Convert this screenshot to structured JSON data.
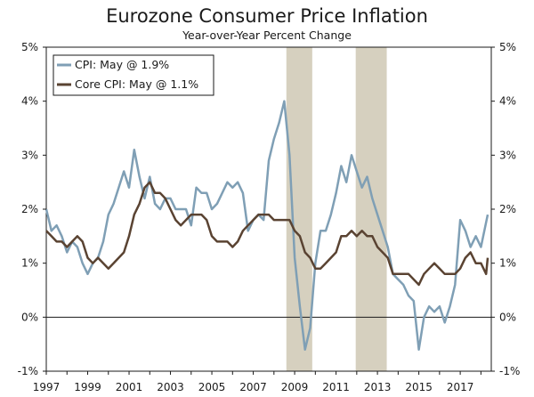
{
  "chart_data": {
    "type": "line",
    "title": "Eurozone Consumer Price Inflation",
    "subtitle": "Year-over-Year Percent Change",
    "xlabel": "",
    "ylabel": "",
    "xlim": [
      1997,
      2018.5
    ],
    "ylim": [
      -1,
      5
    ],
    "y_ticks": [
      -1,
      0,
      1,
      2,
      3,
      4,
      5
    ],
    "y_tick_labels": [
      "-1%",
      "0%",
      "1%",
      "2%",
      "3%",
      "4%",
      "5%"
    ],
    "x_ticks": [
      1997,
      1999,
      2001,
      2003,
      2005,
      2007,
      2009,
      2011,
      2013,
      2015,
      2017
    ],
    "x_tick_labels": [
      "1997",
      "1999",
      "2001",
      "2003",
      "2005",
      "2007",
      "2009",
      "2011",
      "2013",
      "2015",
      "2017"
    ],
    "legend_position": "top-left",
    "recessions": [
      {
        "start": 2008.6,
        "end": 2009.85
      },
      {
        "start": 2011.95,
        "end": 2013.45
      }
    ],
    "series": [
      {
        "name": "CPI: May @ 1.9%",
        "color": "#7f9fb5",
        "points": [
          [
            1997.0,
            2.0
          ],
          [
            1997.25,
            1.6
          ],
          [
            1997.5,
            1.7
          ],
          [
            1997.75,
            1.5
          ],
          [
            1998.0,
            1.2
          ],
          [
            1998.25,
            1.4
          ],
          [
            1998.5,
            1.3
          ],
          [
            1998.75,
            1.0
          ],
          [
            1999.0,
            0.8
          ],
          [
            1999.25,
            1.0
          ],
          [
            1999.5,
            1.1
          ],
          [
            1999.75,
            1.4
          ],
          [
            2000.0,
            1.9
          ],
          [
            2000.25,
            2.1
          ],
          [
            2000.5,
            2.4
          ],
          [
            2000.75,
            2.7
          ],
          [
            2001.0,
            2.4
          ],
          [
            2001.25,
            3.1
          ],
          [
            2001.5,
            2.6
          ],
          [
            2001.75,
            2.2
          ],
          [
            2002.0,
            2.6
          ],
          [
            2002.25,
            2.1
          ],
          [
            2002.5,
            2.0
          ],
          [
            2002.75,
            2.2
          ],
          [
            2003.0,
            2.2
          ],
          [
            2003.25,
            2.0
          ],
          [
            2003.5,
            2.0
          ],
          [
            2003.75,
            2.0
          ],
          [
            2004.0,
            1.7
          ],
          [
            2004.25,
            2.4
          ],
          [
            2004.5,
            2.3
          ],
          [
            2004.75,
            2.3
          ],
          [
            2005.0,
            2.0
          ],
          [
            2005.25,
            2.1
          ],
          [
            2005.5,
            2.3
          ],
          [
            2005.75,
            2.5
          ],
          [
            2006.0,
            2.4
          ],
          [
            2006.25,
            2.5
          ],
          [
            2006.5,
            2.3
          ],
          [
            2006.75,
            1.6
          ],
          [
            2007.0,
            1.8
          ],
          [
            2007.25,
            1.9
          ],
          [
            2007.5,
            1.8
          ],
          [
            2007.75,
            2.9
          ],
          [
            2008.0,
            3.3
          ],
          [
            2008.25,
            3.6
          ],
          [
            2008.5,
            4.0
          ],
          [
            2008.75,
            3.0
          ],
          [
            2009.0,
            1.1
          ],
          [
            2009.25,
            0.2
          ],
          [
            2009.5,
            -0.6
          ],
          [
            2009.75,
            -0.2
          ],
          [
            2010.0,
            1.0
          ],
          [
            2010.25,
            1.6
          ],
          [
            2010.5,
            1.6
          ],
          [
            2010.75,
            1.9
          ],
          [
            2011.0,
            2.3
          ],
          [
            2011.25,
            2.8
          ],
          [
            2011.5,
            2.5
          ],
          [
            2011.75,
            3.0
          ],
          [
            2012.0,
            2.7
          ],
          [
            2012.25,
            2.4
          ],
          [
            2012.5,
            2.6
          ],
          [
            2012.75,
            2.2
          ],
          [
            2013.0,
            1.9
          ],
          [
            2013.25,
            1.6
          ],
          [
            2013.5,
            1.3
          ],
          [
            2013.75,
            0.8
          ],
          [
            2014.0,
            0.7
          ],
          [
            2014.25,
            0.6
          ],
          [
            2014.5,
            0.4
          ],
          [
            2014.75,
            0.3
          ],
          [
            2015.0,
            -0.6
          ],
          [
            2015.25,
            0.0
          ],
          [
            2015.5,
            0.2
          ],
          [
            2015.75,
            0.1
          ],
          [
            2016.0,
            0.2
          ],
          [
            2016.25,
            -0.1
          ],
          [
            2016.5,
            0.2
          ],
          [
            2016.75,
            0.6
          ],
          [
            2017.0,
            1.8
          ],
          [
            2017.25,
            1.6
          ],
          [
            2017.5,
            1.3
          ],
          [
            2017.75,
            1.5
          ],
          [
            2018.0,
            1.3
          ],
          [
            2018.33,
            1.9
          ]
        ]
      },
      {
        "name": "Core CPI: May @ 1.1%",
        "color": "#5a4332",
        "points": [
          [
            1997.0,
            1.6
          ],
          [
            1997.25,
            1.5
          ],
          [
            1997.5,
            1.4
          ],
          [
            1997.75,
            1.4
          ],
          [
            1998.0,
            1.3
          ],
          [
            1998.25,
            1.4
          ],
          [
            1998.5,
            1.5
          ],
          [
            1998.75,
            1.4
          ],
          [
            1999.0,
            1.1
          ],
          [
            1999.25,
            1.0
          ],
          [
            1999.5,
            1.1
          ],
          [
            1999.75,
            1.0
          ],
          [
            2000.0,
            0.9
          ],
          [
            2000.25,
            1.0
          ],
          [
            2000.5,
            1.1
          ],
          [
            2000.75,
            1.2
          ],
          [
            2001.0,
            1.5
          ],
          [
            2001.25,
            1.9
          ],
          [
            2001.5,
            2.1
          ],
          [
            2001.75,
            2.4
          ],
          [
            2002.0,
            2.5
          ],
          [
            2002.25,
            2.3
          ],
          [
            2002.5,
            2.3
          ],
          [
            2002.75,
            2.2
          ],
          [
            2003.0,
            2.0
          ],
          [
            2003.25,
            1.8
          ],
          [
            2003.5,
            1.7
          ],
          [
            2003.75,
            1.8
          ],
          [
            2004.0,
            1.9
          ],
          [
            2004.25,
            1.9
          ],
          [
            2004.5,
            1.9
          ],
          [
            2004.75,
            1.8
          ],
          [
            2005.0,
            1.5
          ],
          [
            2005.25,
            1.4
          ],
          [
            2005.5,
            1.4
          ],
          [
            2005.75,
            1.4
          ],
          [
            2006.0,
            1.3
          ],
          [
            2006.25,
            1.4
          ],
          [
            2006.5,
            1.6
          ],
          [
            2006.75,
            1.7
          ],
          [
            2007.0,
            1.8
          ],
          [
            2007.25,
            1.9
          ],
          [
            2007.5,
            1.9
          ],
          [
            2007.75,
            1.9
          ],
          [
            2008.0,
            1.8
          ],
          [
            2008.25,
            1.8
          ],
          [
            2008.5,
            1.8
          ],
          [
            2008.75,
            1.8
          ],
          [
            2009.0,
            1.6
          ],
          [
            2009.25,
            1.5
          ],
          [
            2009.5,
            1.2
          ],
          [
            2009.75,
            1.1
          ],
          [
            2010.0,
            0.9
          ],
          [
            2010.25,
            0.9
          ],
          [
            2010.5,
            1.0
          ],
          [
            2010.75,
            1.1
          ],
          [
            2011.0,
            1.2
          ],
          [
            2011.25,
            1.5
          ],
          [
            2011.5,
            1.5
          ],
          [
            2011.75,
            1.6
          ],
          [
            2012.0,
            1.5
          ],
          [
            2012.25,
            1.6
          ],
          [
            2012.5,
            1.5
          ],
          [
            2012.75,
            1.5
          ],
          [
            2013.0,
            1.3
          ],
          [
            2013.25,
            1.2
          ],
          [
            2013.5,
            1.1
          ],
          [
            2013.75,
            0.8
          ],
          [
            2014.0,
            0.8
          ],
          [
            2014.25,
            0.8
          ],
          [
            2014.5,
            0.8
          ],
          [
            2014.75,
            0.7
          ],
          [
            2015.0,
            0.6
          ],
          [
            2015.25,
            0.8
          ],
          [
            2015.5,
            0.9
          ],
          [
            2015.75,
            1.0
          ],
          [
            2016.0,
            0.9
          ],
          [
            2016.25,
            0.8
          ],
          [
            2016.5,
            0.8
          ],
          [
            2016.75,
            0.8
          ],
          [
            2017.0,
            0.9
          ],
          [
            2017.25,
            1.1
          ],
          [
            2017.5,
            1.2
          ],
          [
            2017.75,
            1.0
          ],
          [
            2018.0,
            1.0
          ],
          [
            2018.25,
            0.8
          ],
          [
            2018.33,
            1.1
          ]
        ]
      }
    ]
  }
}
